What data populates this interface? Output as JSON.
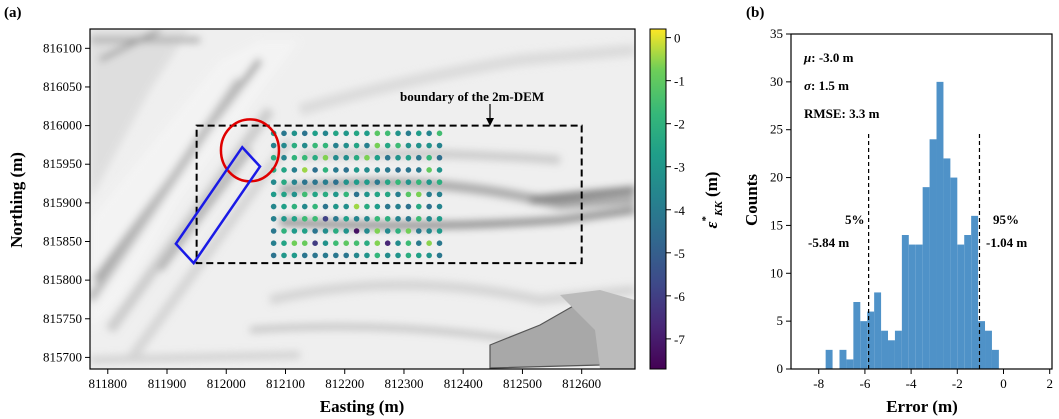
{
  "panels": {
    "a": {
      "label": "(a)"
    },
    "b": {
      "label": "(b)"
    }
  },
  "chart_data": [
    {
      "type": "scatter",
      "panel": "a",
      "xlabel": "Easting (m)",
      "ylabel": "Northing (m)",
      "xlim": [
        811770,
        812690
      ],
      "ylim": [
        815685,
        816125
      ],
      "x_ticks": [
        "811800",
        "811900",
        "812000",
        "812100",
        "812200",
        "812300",
        "812400",
        "812500",
        "812600"
      ],
      "y_ticks": [
        "815700",
        "815750",
        "815800",
        "815850",
        "815900",
        "815950",
        "816000",
        "816050",
        "816100"
      ],
      "annotation": "boundary of the 2m-DEM",
      "boundary_box": {
        "x": [
          811950,
          812600
        ],
        "y": [
          815822,
          816000
        ]
      },
      "ellipse_center": [
        812040,
        815968
      ],
      "rectangle_corners": [
        [
          811915,
          815847
        ],
        [
          811945,
          815822
        ],
        [
          812057,
          815947
        ],
        [
          812027,
          815972
        ]
      ],
      "colorbar": {
        "label": "ε*KK (m)",
        "label_main": "ε",
        "label_sup": "*",
        "label_sub": "KK",
        "label_unit": " (m)",
        "ticks": [
          "0",
          "-1",
          "-2",
          "-3",
          "-4",
          "-5",
          "-6",
          "-7"
        ],
        "range": [
          -7.7,
          0.2
        ],
        "colormap": "viridis"
      },
      "points_grid": {
        "x_start": 812080,
        "x_step": 17.5,
        "n_cols": 17,
        "y_start": 815990,
        "y_step": 15.8,
        "n_rows": 11,
        "value_range_typical": [
          -4.5,
          -1.5
        ],
        "note": "errors mostly between -1 and -4 m; a few low outliers near y≈815840-815870"
      }
    },
    {
      "type": "bar",
      "panel": "b",
      "xlabel": "Error (m)",
      "ylabel": "Counts",
      "xlim": [
        -9.2,
        2.1
      ],
      "ylim": [
        0,
        35
      ],
      "x_ticks": [
        "-8",
        "-6",
        "-4",
        "-2",
        "0",
        "2"
      ],
      "y_ticks": [
        "0",
        "5",
        "10",
        "15",
        "20",
        "25",
        "30",
        "35"
      ],
      "bin_left_edges": [
        -7.7,
        -7.4,
        -7.1,
        -6.8,
        -6.5,
        -6.2,
        -5.9,
        -5.6,
        -5.3,
        -5.0,
        -4.7,
        -4.4,
        -4.1,
        -3.8,
        -3.5,
        -3.2,
        -2.9,
        -2.6,
        -2.3,
        -2.0,
        -1.7,
        -1.4,
        -1.1,
        -0.8,
        -0.5
      ],
      "bin_width": 0.3,
      "counts": [
        2,
        0,
        2,
        1,
        7,
        5,
        6,
        8,
        4,
        3,
        4,
        14,
        13,
        13,
        19,
        24,
        30,
        22,
        20,
        13,
        14,
        16,
        5,
        4,
        2
      ],
      "stats": {
        "mu": ": -3.0 m",
        "sigma": ": 1.5 m",
        "rmse": "RMSE: 3.3 m"
      },
      "percentile_lines": [
        {
          "pct": "5%",
          "value": "-5.84 m",
          "x": -5.84
        },
        {
          "pct": "95%",
          "value": "-1.04 m",
          "x": -1.04
        }
      ]
    }
  ]
}
